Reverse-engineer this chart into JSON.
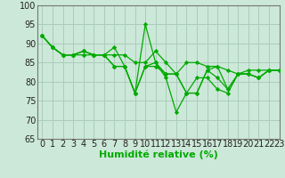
{
  "background_color": "#cce8d8",
  "grid_color": "#aaccbc",
  "line_color": "#00aa00",
  "marker_color": "#00aa00",
  "xlabel": "Humidité relative (%)",
  "xlabel_fontsize": 8,
  "tick_fontsize": 7,
  "ylim": [
    65,
    100
  ],
  "xlim": [
    -0.5,
    23
  ],
  "yticks": [
    65,
    70,
    75,
    80,
    85,
    90,
    95,
    100
  ],
  "xticks": [
    0,
    1,
    2,
    3,
    4,
    5,
    6,
    7,
    8,
    9,
    10,
    11,
    12,
    13,
    14,
    15,
    16,
    17,
    18,
    19,
    20,
    21,
    22,
    23
  ],
  "series": [
    [
      92,
      89,
      87,
      87,
      87,
      87,
      87,
      87,
      87,
      85,
      85,
      88,
      85,
      82,
      85,
      85,
      84,
      84,
      83,
      82,
      83,
      83,
      83,
      83
    ],
    [
      92,
      89,
      87,
      87,
      88,
      87,
      87,
      89,
      84,
      77,
      95,
      85,
      81,
      72,
      77,
      81,
      81,
      78,
      77,
      82,
      82,
      81,
      83,
      83
    ],
    [
      92,
      89,
      87,
      87,
      88,
      87,
      87,
      84,
      84,
      77,
      84,
      85,
      82,
      82,
      77,
      77,
      83,
      84,
      78,
      82,
      82,
      81,
      83,
      83
    ],
    [
      92,
      89,
      87,
      87,
      88,
      87,
      87,
      84,
      84,
      77,
      84,
      84,
      82,
      82,
      77,
      77,
      83,
      81,
      78,
      82,
      82,
      81,
      83,
      83
    ]
  ],
  "figsize": [
    3.2,
    2.0
  ],
  "dpi": 100
}
